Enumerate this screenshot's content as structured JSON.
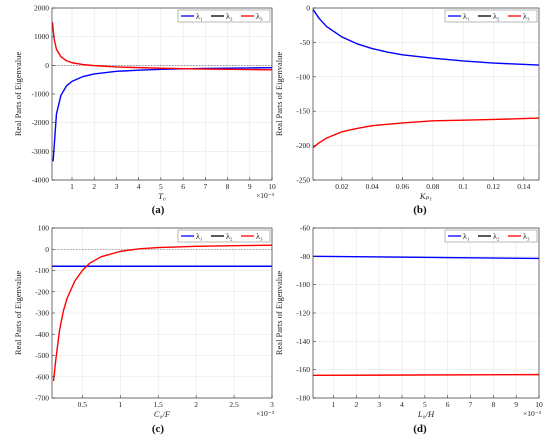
{
  "chart_data": [
    {
      "type": "line",
      "panel_label": "(a)",
      "xlabel": "T₀",
      "ylabel": "Real Parts of Eigenvalue",
      "x_multiplier": "×10⁻³",
      "xlim": [
        0.1,
        10
      ],
      "ylim": [
        -4000,
        2000
      ],
      "xticks": [
        1,
        2,
        3,
        4,
        5,
        6,
        7,
        8,
        9,
        10
      ],
      "yticks": [
        -4000,
        -3000,
        -2000,
        -1000,
        0,
        1000,
        2000
      ],
      "ytick_labels": [
        "-4000",
        "-3000",
        "-2000",
        "-1000",
        "0",
        "1000",
        "2000"
      ],
      "xtick_labels": [
        "1",
        "2",
        "3",
        "4",
        "5",
        "6",
        "7",
        "8",
        "9",
        "10"
      ],
      "grid": true,
      "zero_line": true,
      "legend": {
        "position": "top-right",
        "entries": [
          "λ₁",
          "λ₂",
          "λ₃"
        ]
      },
      "series": [
        {
          "name": "λ₁",
          "color": "#0000ff",
          "x": [
            0.15,
            0.3,
            0.5,
            0.75,
            1,
            1.5,
            2,
            3,
            4,
            5,
            6,
            7,
            8,
            9,
            10
          ],
          "y": [
            -3350,
            -1700,
            -1050,
            -720,
            -560,
            -390,
            -300,
            -210,
            -170,
            -140,
            -120,
            -108,
            -98,
            -90,
            -82
          ]
        },
        {
          "name": "λ₂",
          "color": "#000000",
          "x": [],
          "y": []
        },
        {
          "name": "λ₃",
          "color": "#ff0000",
          "x": [
            0.12,
            0.2,
            0.3,
            0.5,
            0.75,
            1,
            1.5,
            2,
            3,
            4,
            5,
            6,
            7,
            8,
            9,
            10
          ],
          "y": [
            1500,
            900,
            560,
            300,
            160,
            90,
            25,
            -10,
            -55,
            -80,
            -100,
            -118,
            -130,
            -140,
            -148,
            -155
          ]
        }
      ]
    },
    {
      "type": "line",
      "panel_label": "(b)",
      "xlabel": "Kₚ₁",
      "ylabel": "Real Parts of Eigenvalue",
      "xlim": [
        0.001,
        0.15
      ],
      "ylim": [
        -250,
        0
      ],
      "xticks": [
        0.02,
        0.04,
        0.06,
        0.08,
        0.1,
        0.12,
        0.14
      ],
      "xtick_labels": [
        "0.02",
        "0.04",
        "0.06",
        "0.08",
        "0.1",
        "0.12",
        "0.14"
      ],
      "yticks": [
        -250,
        -200,
        -150,
        -100,
        -50,
        0
      ],
      "ytick_labels": [
        "-250",
        "-200",
        "-150",
        "-100",
        "-50",
        "0"
      ],
      "grid": true,
      "legend": {
        "position": "top-right",
        "entries": [
          "λ₁",
          "λ₂",
          "λ₃"
        ]
      },
      "series": [
        {
          "name": "λ₁",
          "color": "#0000ff",
          "x": [
            0.001,
            0.005,
            0.01,
            0.02,
            0.03,
            0.04,
            0.05,
            0.06,
            0.08,
            0.1,
            0.12,
            0.15
          ],
          "y": [
            -2,
            -15,
            -27,
            -42,
            -52,
            -59,
            -64,
            -68,
            -73,
            -77,
            -80,
            -83
          ]
        },
        {
          "name": "λ₂",
          "color": "#000000",
          "x": [],
          "y": []
        },
        {
          "name": "λ₃",
          "color": "#ff0000",
          "x": [
            0.001,
            0.005,
            0.01,
            0.02,
            0.03,
            0.04,
            0.05,
            0.06,
            0.08,
            0.1,
            0.12,
            0.15
          ],
          "y": [
            -203,
            -196,
            -189,
            -180,
            -175,
            -171,
            -169,
            -167,
            -164,
            -163,
            -162,
            -160
          ]
        }
      ]
    },
    {
      "type": "line",
      "panel_label": "(c)",
      "xlabel": "C₀/F",
      "ylabel": "Real Parts of Eigenvalue",
      "x_multiplier": "×10⁻³",
      "xlim": [
        0.1,
        3
      ],
      "ylim": [
        -700,
        100
      ],
      "xticks": [
        0.5,
        1,
        1.5,
        2,
        2.5,
        3
      ],
      "xtick_labels": [
        "0.5",
        "1",
        "1.5",
        "2",
        "2.5",
        "3"
      ],
      "yticks": [
        -700,
        -600,
        -500,
        -400,
        -300,
        -200,
        -100,
        0,
        100
      ],
      "ytick_labels": [
        "-700",
        "-600",
        "-500",
        "-400",
        "-300",
        "-200",
        "-100",
        "0",
        "100"
      ],
      "grid": true,
      "zero_line": true,
      "legend": {
        "position": "top-right",
        "entries": [
          "λ₁",
          "λ₂",
          "λ₃"
        ]
      },
      "series": [
        {
          "name": "λ₁",
          "color": "#0000ff",
          "x": [
            0.1,
            3
          ],
          "y": [
            -80,
            -80
          ]
        },
        {
          "name": "λ₂",
          "color": "#000000",
          "x": [],
          "y": []
        },
        {
          "name": "λ₃",
          "color": "#ff0000",
          "x": [
            0.12,
            0.15,
            0.2,
            0.25,
            0.3,
            0.4,
            0.5,
            0.6,
            0.75,
            1,
            1.25,
            1.5,
            2,
            2.5,
            3
          ],
          "y": [
            -620,
            -520,
            -380,
            -290,
            -230,
            -150,
            -100,
            -65,
            -35,
            -10,
            2,
            8,
            14,
            17,
            19
          ]
        }
      ]
    },
    {
      "type": "line",
      "panel_label": "(d)",
      "xlabel": "L₀/H",
      "ylabel": "Real Parts of Eigenvalue",
      "x_multiplier": "×10⁻³",
      "xlim": [
        0.1,
        10
      ],
      "ylim": [
        -180,
        -60
      ],
      "xticks": [
        1,
        2,
        3,
        4,
        5,
        6,
        7,
        8,
        9,
        10
      ],
      "xtick_labels": [
        "1",
        "2",
        "3",
        "4",
        "5",
        "6",
        "7",
        "8",
        "9",
        "10"
      ],
      "yticks": [
        -180,
        -160,
        -140,
        -120,
        -100,
        -80,
        -60
      ],
      "ytick_labels": [
        "-180",
        "-160",
        "-140",
        "-120",
        "-100",
        "-80",
        "-60"
      ],
      "grid": true,
      "legend": {
        "position": "top-right",
        "entries": [
          "λ₁",
          "λ₂",
          "λ₃"
        ]
      },
      "series": [
        {
          "name": "λ₁",
          "color": "#0000ff",
          "x": [
            0.1,
            10
          ],
          "y": [
            -80,
            -81.5
          ]
        },
        {
          "name": "λ₂",
          "color": "#000000",
          "x": [],
          "y": []
        },
        {
          "name": "λ₃",
          "color": "#ff0000",
          "x": [
            0.1,
            10
          ],
          "y": [
            -164,
            -163.5
          ]
        }
      ]
    }
  ]
}
